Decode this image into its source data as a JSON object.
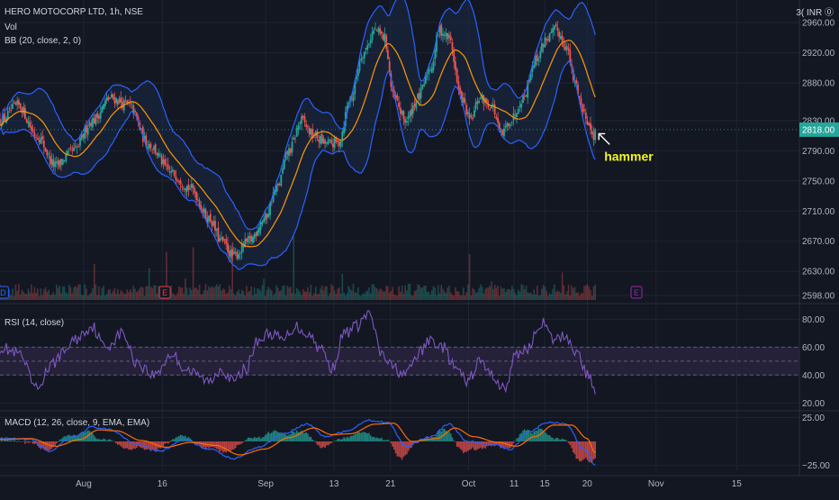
{
  "header": {
    "symbol_line": "HERO MOTOCORP LTD, 1h, NSE",
    "vol_label": "Vol",
    "bb_label": "BB (20, close, 2, 0)",
    "currency": "3( INR ⓪"
  },
  "rsi_label": "RSI (14, close)",
  "macd_label": "MACD (12, 26, close, 9, EMA, EMA)",
  "colors": {
    "background": "#131722",
    "candle_up": "#26a69a",
    "candle_down": "#ef5350",
    "bb_band": "#2962ff",
    "bb_basis": "#ff9800",
    "bb_fill": "#1c2a46",
    "rsi_line": "#7e57c2",
    "rsi_band": "#2a2440",
    "macd_line": "#2962ff",
    "signal_line": "#ff6d00",
    "annotation": "#f5f51e",
    "price_tag": "#26a69a"
  },
  "chart_data": [
    {
      "type": "candlestick",
      "name": "price",
      "x_ticks": [
        {
          "label": "Aug",
          "pos": 0.136
        },
        {
          "label": "16",
          "pos": 0.264
        },
        {
          "label": "Sep",
          "pos": 0.432
        },
        {
          "label": "13",
          "pos": 0.543
        },
        {
          "label": "21",
          "pos": 0.635
        },
        {
          "label": "Oct",
          "pos": 0.762
        },
        {
          "label": "11",
          "pos": 0.836
        },
        {
          "label": "15",
          "pos": 0.886
        },
        {
          "label": "20",
          "pos": 0.955
        },
        {
          "label": "Nov",
          "pos": 1.067
        },
        {
          "label": "15",
          "pos": 1.198
        }
      ],
      "x_range": [
        0,
        1.3
      ],
      "y_ticks": [
        2960,
        2920,
        2880,
        2830,
        2790,
        2750,
        2710,
        2670,
        2630,
        2598
      ],
      "y_tick_labels": [
        "2960.00",
        "2920.00",
        "2880.00",
        "2830.00",
        "2790.00",
        "2750.00",
        "2710.00",
        "2670.00",
        "2630.00",
        "2598.00"
      ],
      "ylim": [
        2592,
        2990
      ],
      "last_price": 2818,
      "last_price_label": "2818.00",
      "anchors": [
        [
          0.0,
          2830
        ],
        [
          0.03,
          2850
        ],
        [
          0.06,
          2810
        ],
        [
          0.09,
          2770
        ],
        [
          0.12,
          2790
        ],
        [
          0.15,
          2830
        ],
        [
          0.18,
          2860
        ],
        [
          0.21,
          2850
        ],
        [
          0.24,
          2800
        ],
        [
          0.28,
          2760
        ],
        [
          0.31,
          2740
        ],
        [
          0.34,
          2700
        ],
        [
          0.36,
          2670
        ],
        [
          0.38,
          2650
        ],
        [
          0.405,
          2670
        ],
        [
          0.43,
          2700
        ],
        [
          0.45,
          2740
        ],
        [
          0.47,
          2790
        ],
        [
          0.49,
          2830
        ],
        [
          0.51,
          2810
        ],
        [
          0.53,
          2800
        ],
        [
          0.55,
          2800
        ],
        [
          0.57,
          2860
        ],
        [
          0.59,
          2920
        ],
        [
          0.61,
          2950
        ],
        [
          0.625,
          2940
        ],
        [
          0.64,
          2860
        ],
        [
          0.66,
          2830
        ],
        [
          0.68,
          2860
        ],
        [
          0.7,
          2900
        ],
        [
          0.715,
          2950
        ],
        [
          0.73,
          2940
        ],
        [
          0.75,
          2860
        ],
        [
          0.765,
          2830
        ],
        [
          0.78,
          2860
        ],
        [
          0.8,
          2850
        ],
        [
          0.815,
          2810
        ],
        [
          0.83,
          2830
        ],
        [
          0.85,
          2860
        ],
        [
          0.87,
          2910
        ],
        [
          0.89,
          2940
        ],
        [
          0.905,
          2950
        ],
        [
          0.92,
          2930
        ],
        [
          0.935,
          2880
        ],
        [
          0.95,
          2840
        ],
        [
          0.965,
          2810
        ],
        [
          0.968,
          2818
        ]
      ],
      "annotation": {
        "text": "hammer",
        "x": 0.968,
        "y": 2815
      },
      "earnings_markers": [
        {
          "label": "D",
          "x": 0.005
        },
        {
          "label": "E",
          "x": 0.268
        },
        {
          "label": "E",
          "x": 1.035
        }
      ]
    },
    {
      "type": "line",
      "name": "rsi",
      "y_ticks": [
        80,
        60,
        40,
        20
      ],
      "y_tick_labels": [
        "80.00",
        "60.00",
        "40.00",
        "20.00"
      ],
      "ylim": [
        15,
        88
      ],
      "band": [
        40,
        60
      ],
      "midline": 50,
      "anchors": [
        [
          0.0,
          60
        ],
        [
          0.03,
          55
        ],
        [
          0.06,
          30
        ],
        [
          0.08,
          45
        ],
        [
          0.1,
          55
        ],
        [
          0.12,
          65
        ],
        [
          0.15,
          75
        ],
        [
          0.17,
          60
        ],
        [
          0.2,
          70
        ],
        [
          0.22,
          50
        ],
        [
          0.25,
          40
        ],
        [
          0.28,
          55
        ],
        [
          0.3,
          45
        ],
        [
          0.32,
          40
        ],
        [
          0.34,
          35
        ],
        [
          0.36,
          45
        ],
        [
          0.38,
          35
        ],
        [
          0.4,
          45
        ],
        [
          0.42,
          65
        ],
        [
          0.44,
          70
        ],
        [
          0.46,
          65
        ],
        [
          0.48,
          75
        ],
        [
          0.5,
          70
        ],
        [
          0.52,
          60
        ],
        [
          0.54,
          45
        ],
        [
          0.56,
          70
        ],
        [
          0.58,
          75
        ],
        [
          0.6,
          85
        ],
        [
          0.62,
          55
        ],
        [
          0.64,
          45
        ],
        [
          0.66,
          40
        ],
        [
          0.68,
          55
        ],
        [
          0.7,
          65
        ],
        [
          0.72,
          60
        ],
        [
          0.74,
          45
        ],
        [
          0.76,
          35
        ],
        [
          0.78,
          50
        ],
        [
          0.8,
          40
        ],
        [
          0.82,
          30
        ],
        [
          0.84,
          55
        ],
        [
          0.86,
          60
        ],
        [
          0.88,
          78
        ],
        [
          0.9,
          65
        ],
        [
          0.92,
          68
        ],
        [
          0.94,
          55
        ],
        [
          0.955,
          40
        ],
        [
          0.968,
          30
        ]
      ]
    },
    {
      "type": "line",
      "name": "macd",
      "y_ticks": [
        25,
        -25
      ],
      "y_tick_labels": [
        "25.00",
        "−25.00"
      ],
      "ylim": [
        -30,
        30
      ],
      "macd_anchors": [
        [
          0.0,
          3
        ],
        [
          0.05,
          2
        ],
        [
          0.08,
          -10
        ],
        [
          0.12,
          5
        ],
        [
          0.15,
          15
        ],
        [
          0.18,
          12
        ],
        [
          0.22,
          -2
        ],
        [
          0.26,
          -10
        ],
        [
          0.3,
          2
        ],
        [
          0.34,
          -8
        ],
        [
          0.38,
          -18
        ],
        [
          0.42,
          -6
        ],
        [
          0.46,
          8
        ],
        [
          0.5,
          18
        ],
        [
          0.53,
          5
        ],
        [
          0.56,
          10
        ],
        [
          0.6,
          22
        ],
        [
          0.63,
          20
        ],
        [
          0.66,
          -5
        ],
        [
          0.7,
          5
        ],
        [
          0.73,
          18
        ],
        [
          0.76,
          0
        ],
        [
          0.8,
          -3
        ],
        [
          0.83,
          -8
        ],
        [
          0.86,
          10
        ],
        [
          0.89,
          20
        ],
        [
          0.92,
          18
        ],
        [
          0.95,
          -8
        ],
        [
          0.968,
          -25
        ]
      ],
      "signal_anchors": [
        [
          0.0,
          2
        ],
        [
          0.05,
          3
        ],
        [
          0.09,
          -5
        ],
        [
          0.13,
          2
        ],
        [
          0.16,
          12
        ],
        [
          0.19,
          11
        ],
        [
          0.23,
          1
        ],
        [
          0.27,
          -6
        ],
        [
          0.31,
          -1
        ],
        [
          0.35,
          -4
        ],
        [
          0.39,
          -14
        ],
        [
          0.43,
          -8
        ],
        [
          0.47,
          4
        ],
        [
          0.51,
          14
        ],
        [
          0.54,
          7
        ],
        [
          0.57,
          8
        ],
        [
          0.61,
          18
        ],
        [
          0.64,
          19
        ],
        [
          0.67,
          0
        ],
        [
          0.71,
          3
        ],
        [
          0.74,
          14
        ],
        [
          0.77,
          5
        ],
        [
          0.81,
          -1
        ],
        [
          0.84,
          -5
        ],
        [
          0.87,
          5
        ],
        [
          0.9,
          17
        ],
        [
          0.93,
          17
        ],
        [
          0.955,
          3
        ],
        [
          0.968,
          -12
        ]
      ]
    }
  ]
}
